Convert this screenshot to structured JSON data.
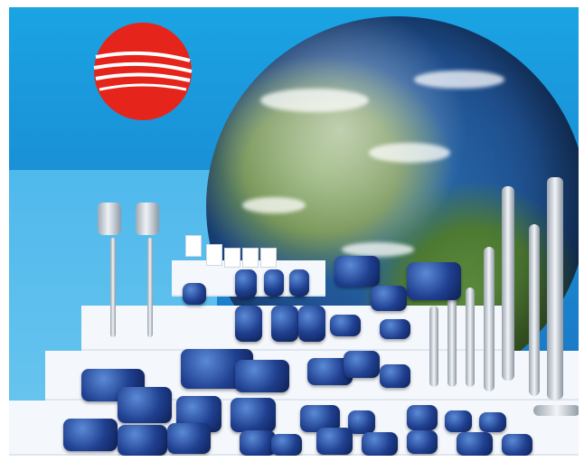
{
  "scene": {
    "subject": "pump-product-showcase",
    "background_color": "#1b86cf",
    "logo_color": "#e5241b",
    "globe_ocean_color": "#1f4f8e",
    "step_color": "#f4f7fb",
    "pump_color": "#1f3f8f"
  }
}
